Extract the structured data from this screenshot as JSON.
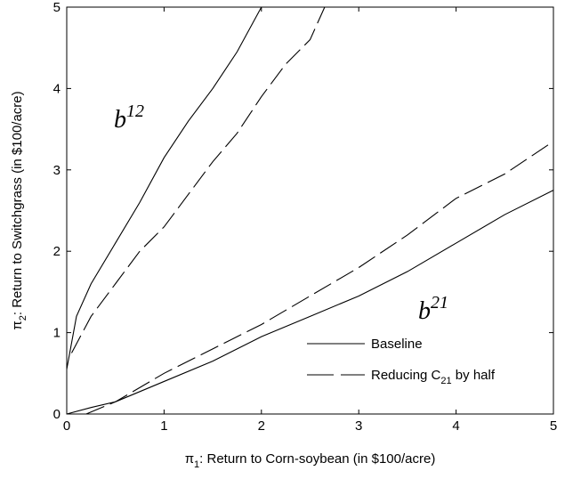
{
  "chart_data": {
    "type": "line",
    "xlabel": [
      {
        "text": "π"
      },
      {
        "sub": "1"
      },
      {
        "text": ": Return to Corn-soybean (in $100/acre)"
      }
    ],
    "ylabel": [
      {
        "text": "π"
      },
      {
        "sub": "2"
      },
      {
        "text": ": Return to Switchgrass (in $100/acre)"
      }
    ],
    "xlim": [
      0,
      5
    ],
    "ylim": [
      0,
      5
    ],
    "xticks": [
      0,
      1,
      2,
      3,
      4,
      5
    ],
    "yticks": [
      0,
      1,
      2,
      3,
      4,
      5
    ],
    "grid": false,
    "legend": "lower right",
    "series": [
      {
        "name": [
          {
            "text": "Baseline"
          }
        ],
        "color": "#000000",
        "dash": "solid",
        "lines": [
          {
            "x": [
              0,
              0.1,
              0.25,
              0.5,
              0.75,
              1,
              1.25,
              1.5,
              1.75,
              2.0
            ],
            "y": [
              0.55,
              1.2,
              1.6,
              2.1,
              2.6,
              3.15,
              3.6,
              4.0,
              4.45,
              5.0
            ]
          },
          {
            "x": [
              0,
              0.25,
              0.5,
              1,
              1.5,
              2,
              2.5,
              3,
              3.5,
              4,
              4.5,
              5
            ],
            "y": [
              0,
              0.08,
              0.15,
              0.4,
              0.65,
              0.95,
              1.2,
              1.45,
              1.75,
              2.1,
              2.45,
              2.75
            ]
          }
        ]
      },
      {
        "name": [
          {
            "text": "Reducing C"
          },
          {
            "sub": "21"
          },
          {
            "text": " by half"
          }
        ],
        "color": "#000000",
        "dash": "dashed",
        "lines": [
          {
            "x": [
              0.05,
              0.25,
              0.5,
              0.75,
              1,
              1.25,
              1.5,
              1.75,
              2,
              2.25,
              2.5,
              2.65
            ],
            "y": [
              0.75,
              1.2,
              1.6,
              2.0,
              2.3,
              2.7,
              3.1,
              3.45,
              3.9,
              4.3,
              4.6,
              5.0
            ]
          },
          {
            "x": [
              0.2,
              0.5,
              1,
              1.5,
              2,
              2.5,
              3,
              3.5,
              4,
              4.5,
              5
            ],
            "y": [
              0,
              0.15,
              0.5,
              0.8,
              1.1,
              1.45,
              1.8,
              2.2,
              2.65,
              2.95,
              3.35
            ]
          }
        ]
      }
    ],
    "annotations": [
      [
        {
          "text": "b"
        },
        {
          "sup": "12"
        }
      ],
      [
        {
          "text": "b"
        },
        {
          "sup": "21"
        }
      ]
    ]
  }
}
